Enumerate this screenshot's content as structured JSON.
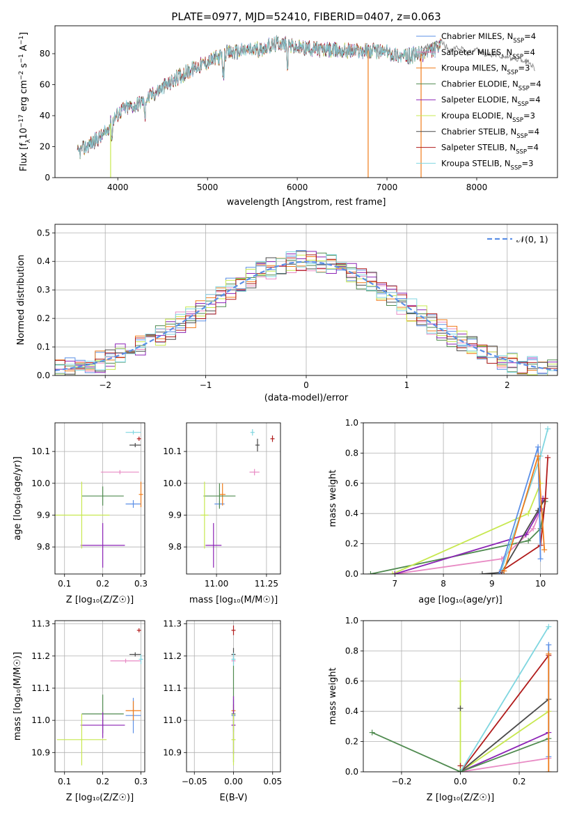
{
  "colors": {
    "chabrier_miles": "#5b8fe6",
    "salpeter_miles": "#e88ac4",
    "kroupa_miles": "#f07c1a",
    "chabrier_elodie": "#4f8a4f",
    "salpeter_elodie": "#8b22b5",
    "kroupa_elodie": "#c7e84f",
    "chabrier_stelib": "#4a4a4a",
    "salpeter_stelib": "#b01a1a",
    "kroupa_stelib": "#7fd6e0",
    "gauss": "#5b8fe6",
    "grid": "#b0b0b0"
  },
  "chart_data": [
    {
      "id": "spectrum",
      "type": "line",
      "title": "PLATE=0977, MJD=52410, FIBERID=0407, z=0.063",
      "xlabel": "wavelength [Angstrom, rest frame]",
      "ylabel_parts": [
        "Flux [f",
        "λ",
        "10",
        "−17",
        " erg cm",
        "−2",
        " s",
        "−1",
        " A",
        "−1",
        "]"
      ],
      "xlim": [
        3300,
        8900
      ],
      "ylim": [
        0,
        98
      ],
      "xticks": [
        4000,
        5000,
        6000,
        7000,
        8000
      ],
      "yticks": [
        0,
        20,
        40,
        60,
        80
      ],
      "grid": false,
      "legend_placement": "top-right",
      "legend": [
        {
          "base": "Chabrier MILES, N",
          "sub": "SSP",
          "n": "=4",
          "color_key": "chabrier_miles"
        },
        {
          "base": "Salpeter MILES, N",
          "sub": "SSP",
          "n": "=4",
          "color_key": "salpeter_miles"
        },
        {
          "base": "Kroupa MILES, N",
          "sub": "SSP",
          "n": "=3",
          "color_key": "kroupa_miles"
        },
        {
          "base": "Chabrier ELODIE, N",
          "sub": "SSP",
          "n": "=4",
          "color_key": "chabrier_elodie"
        },
        {
          "base": "Salpeter ELODIE, N",
          "sub": "SSP",
          "n": "=4",
          "color_key": "salpeter_elodie"
        },
        {
          "base": "Kroupa ELODIE, N",
          "sub": "SSP",
          "n": "=3",
          "color_key": "kroupa_elodie"
        },
        {
          "base": "Chabrier STELIB, N",
          "sub": "SSP",
          "n": "=4",
          "color_key": "chabrier_stelib"
        },
        {
          "base": "Salpeter STELIB, N",
          "sub": "SSP",
          "n": "=4",
          "color_key": "salpeter_stelib"
        },
        {
          "base": "Kroupa STELIB, N",
          "sub": "SSP",
          "n": "=3",
          "color_key": "kroupa_stelib"
        }
      ],
      "continuum": {
        "x": [
          3550,
          3700,
          3850,
          3950,
          4050,
          4200,
          4350,
          4500,
          4700,
          4900,
          5100,
          5200,
          5400,
          5600,
          5800,
          6000,
          6200,
          6400,
          6600,
          6800,
          7000,
          7200,
          7400,
          7600
        ],
        "y": [
          16,
          22,
          28,
          38,
          44,
          47,
          52,
          58,
          66,
          72,
          77,
          80,
          82,
          83,
          87,
          84,
          83,
          82,
          82,
          82,
          81,
          78,
          80,
          84
        ]
      },
      "data_extension": {
        "x": [
          7400,
          7500,
          7600,
          7700,
          7800,
          7900,
          8000,
          8100,
          8200,
          8300,
          8400,
          8500,
          8600,
          8650
        ],
        "y": [
          84,
          85,
          88,
          82,
          84,
          80,
          83,
          79,
          80,
          78,
          77,
          76,
          74,
          70
        ]
      },
      "dropouts": [
        {
          "x": 3920,
          "color_key": "kroupa_elodie"
        },
        {
          "x": 6790,
          "color_key": "kroupa_miles"
        },
        {
          "x": 7380,
          "color_key": "kroupa_miles"
        }
      ]
    },
    {
      "id": "residuals",
      "type": "line",
      "xlabel": "(data-model)/error",
      "ylabel": "Normed distribution",
      "xlim": [
        -2.5,
        2.5
      ],
      "ylim": [
        0,
        0.53
      ],
      "xticks": [
        -2,
        -1,
        0,
        1,
        2
      ],
      "yticks": [
        0.0,
        0.1,
        0.2,
        0.3,
        0.4,
        0.5
      ],
      "grid": true,
      "legend_placement": "top-right",
      "legend": [
        {
          "label": "𝒩(0, 1)",
          "color_key": "gauss",
          "style": "dashed"
        }
      ],
      "bin_width": 0.1,
      "gaussian": {
        "mu": 0,
        "sigma": 1
      },
      "series": [
        {
          "name": "Chabrier MILES",
          "color_key": "chabrier_miles",
          "values_seed": 1
        },
        {
          "name": "Salpeter MILES",
          "color_key": "salpeter_miles",
          "values_seed": 2
        },
        {
          "name": "Kroupa MILES",
          "color_key": "kroupa_miles",
          "values_seed": 3
        },
        {
          "name": "Chabrier ELODIE",
          "color_key": "chabrier_elodie",
          "values_seed": 4
        },
        {
          "name": "Salpeter ELODIE",
          "color_key": "salpeter_elodie",
          "values_seed": 5
        },
        {
          "name": "Kroupa ELODIE",
          "color_key": "kroupa_elodie",
          "values_seed": 6
        },
        {
          "name": "Chabrier STELIB",
          "color_key": "chabrier_stelib",
          "values_seed": 7
        },
        {
          "name": "Salpeter STELIB",
          "color_key": "salpeter_stelib",
          "values_seed": 8
        },
        {
          "name": "Kroupa STELIB",
          "color_key": "kroupa_stelib",
          "values_seed": 9
        }
      ]
    },
    {
      "id": "age_vs_z",
      "type": "scatter",
      "xlabel": "Z [log₁₀(Z/Z☉)]",
      "ylabel": "age  [log₁₀(age/yr)]",
      "xlim": [
        0.075,
        0.31
      ],
      "ylim": [
        9.715,
        10.19
      ],
      "xticks": [
        0.1,
        0.2,
        0.3
      ],
      "yticks": [
        9.8,
        9.9,
        10.0,
        10.1
      ],
      "grid": true,
      "points": [
        {
          "color_key": "chabrier_miles",
          "x": 0.28,
          "y": 9.935,
          "xerr": 0.02,
          "yerr": 0.012
        },
        {
          "color_key": "salpeter_miles",
          "x": 0.245,
          "y": 10.035,
          "xerr": 0.05,
          "yerr": 0.0
        },
        {
          "color_key": "kroupa_miles",
          "x": 0.3,
          "y": 9.965,
          "xerr": 0.0,
          "yerr": 0.04
        },
        {
          "color_key": "chabrier_elodie",
          "x": 0.2,
          "y": 9.96,
          "xerr": 0.055,
          "yerr": 0.03
        },
        {
          "color_key": "salpeter_elodie",
          "x": 0.2,
          "y": 9.805,
          "xerr": 0.058,
          "yerr": 0.07
        },
        {
          "color_key": "kroupa_elodie",
          "x": 0.145,
          "y": 9.9,
          "xerr": 0.073,
          "yerr": 0.105
        },
        {
          "color_key": "chabrier_stelib",
          "x": 0.285,
          "y": 10.12,
          "xerr": 0.015,
          "yerr": 0.0
        },
        {
          "color_key": "salpeter_stelib",
          "x": 0.295,
          "y": 10.14,
          "xerr": 0.005,
          "yerr": 0.0
        },
        {
          "color_key": "kroupa_stelib",
          "x": 0.28,
          "y": 10.16,
          "xerr": 0.02,
          "yerr": 0.0
        }
      ]
    },
    {
      "id": "age_vs_mass",
      "type": "scatter",
      "xlabel": "mass [log₁₀(M/M☉)]",
      "ylabel": "",
      "xlim": [
        10.85,
        11.32
      ],
      "ylim": [
        9.715,
        10.19
      ],
      "xticks": [
        11.0,
        11.25
      ],
      "yticks": [
        9.8,
        9.9,
        10.0,
        10.1
      ],
      "grid": true,
      "points": [
        {
          "color_key": "chabrier_miles",
          "x": 11.015,
          "y": 9.935,
          "xerr": 0.025,
          "yerr": 0.01
        },
        {
          "color_key": "salpeter_miles",
          "x": 11.19,
          "y": 10.035,
          "xerr": 0.025,
          "yerr": 0.01
        },
        {
          "color_key": "kroupa_miles",
          "x": 11.03,
          "y": 9.965,
          "xerr": 0.015,
          "yerr": 0.035
        },
        {
          "color_key": "chabrier_elodie",
          "x": 11.015,
          "y": 9.96,
          "xerr": 0.08,
          "yerr": 0.04
        },
        {
          "color_key": "salpeter_elodie",
          "x": 10.985,
          "y": 9.805,
          "xerr": 0.04,
          "yerr": 0.07
        },
        {
          "color_key": "kroupa_elodie",
          "x": 10.94,
          "y": 9.9,
          "xerr": 0.02,
          "yerr": 0.105
        },
        {
          "color_key": "chabrier_stelib",
          "x": 11.205,
          "y": 10.12,
          "xerr": 0.01,
          "yerr": 0.02
        },
        {
          "color_key": "salpeter_stelib",
          "x": 11.28,
          "y": 10.14,
          "xerr": 0.005,
          "yerr": 0.01
        },
        {
          "color_key": "kroupa_stelib",
          "x": 11.18,
          "y": 10.16,
          "xerr": 0.01,
          "yerr": 0.01
        }
      ]
    },
    {
      "id": "weight_vs_age",
      "type": "line",
      "xlabel": "age  [log₁₀(age/yr)]",
      "ylabel": "mass weight",
      "xlim": [
        6.35,
        10.35
      ],
      "ylim": [
        0,
        1.0
      ],
      "xticks": [
        7,
        8,
        9,
        10
      ],
      "yticks": [
        0.0,
        0.2,
        0.4,
        0.6,
        0.8,
        1.0
      ],
      "grid": true,
      "series": [
        {
          "color_key": "chabrier_elodie",
          "x": [
            6.5,
            9.75,
            10.0,
            10.1
          ],
          "y": [
            0.0,
            0.22,
            0.3,
            0.48
          ]
        },
        {
          "color_key": "salpeter_miles",
          "x": [
            7.0,
            9.2,
            9.85,
            10.0
          ],
          "y": [
            0.0,
            0.1,
            0.3,
            0.42
          ]
        },
        {
          "color_key": "kroupa_elodie",
          "x": [
            6.95,
            9.75,
            10.0
          ],
          "y": [
            0.0,
            0.4,
            0.6
          ]
        },
        {
          "color_key": "salpeter_elodie",
          "x": [
            7.0,
            9.7,
            10.0,
            10.05
          ],
          "y": [
            0.0,
            0.26,
            0.43,
            0.5
          ]
        },
        {
          "color_key": "chabrier_stelib",
          "x": [
            8.8,
            9.2,
            9.95,
            10.1
          ],
          "y": [
            0.0,
            0.01,
            0.42,
            0.5
          ]
        },
        {
          "color_key": "salpeter_stelib",
          "x": [
            9.2,
            10.0,
            10.1,
            10.15
          ],
          "y": [
            0.02,
            0.19,
            0.5,
            0.77
          ]
        },
        {
          "color_key": "kroupa_stelib",
          "x": [
            9.2,
            10.0,
            10.15
          ],
          "y": [
            0.03,
            0.78,
            0.96
          ]
        },
        {
          "color_key": "chabrier_miles",
          "x": [
            9.15,
            9.95,
            10.0
          ],
          "y": [
            0.0,
            0.84,
            0.1
          ]
        },
        {
          "color_key": "kroupa_miles",
          "x": [
            9.25,
            9.95,
            10.08
          ],
          "y": [
            0.02,
            0.78,
            0.16
          ]
        }
      ]
    },
    {
      "id": "mass_vs_z",
      "type": "scatter",
      "xlabel": "Z [log₁₀(Z/Z☉)]",
      "ylabel": "mass [log₁₀(M/M☉)]",
      "xlim": [
        0.075,
        0.31
      ],
      "ylim": [
        10.84,
        11.31
      ],
      "xticks": [
        0.1,
        0.2,
        0.3
      ],
      "yticks": [
        10.9,
        11.0,
        11.1,
        11.2,
        11.3
      ],
      "grid": true,
      "points": [
        {
          "color_key": "chabrier_miles",
          "x": 0.28,
          "y": 11.015,
          "xerr": 0.02,
          "yerr": 0.055
        },
        {
          "color_key": "salpeter_miles",
          "x": 0.26,
          "y": 11.185,
          "xerr": 0.04,
          "yerr": 0.0
        },
        {
          "color_key": "kroupa_miles",
          "x": 0.28,
          "y": 11.03,
          "xerr": 0.02,
          "yerr": 0.03
        },
        {
          "color_key": "chabrier_elodie",
          "x": 0.2,
          "y": 11.02,
          "xerr": 0.055,
          "yerr": 0.06
        },
        {
          "color_key": "salpeter_elodie",
          "x": 0.2,
          "y": 10.985,
          "xerr": 0.058,
          "yerr": 0.04
        },
        {
          "color_key": "kroupa_elodie",
          "x": 0.145,
          "y": 10.94,
          "xerr": 0.065,
          "yerr": 0.08
        },
        {
          "color_key": "chabrier_stelib",
          "x": 0.285,
          "y": 11.205,
          "xerr": 0.015,
          "yerr": 0.0
        },
        {
          "color_key": "salpeter_stelib",
          "x": 0.295,
          "y": 11.28,
          "xerr": 0.005,
          "yerr": 0.0
        },
        {
          "color_key": "kroupa_stelib",
          "x": 0.3,
          "y": 11.19,
          "xerr": 0.0,
          "yerr": 0.015
        }
      ]
    },
    {
      "id": "mass_vs_ebv",
      "type": "scatter",
      "xlabel": "E(B-V)",
      "ylabel": "",
      "xlim": [
        -0.06,
        0.06
      ],
      "ylim": [
        10.84,
        11.31
      ],
      "xticks": [
        -0.05,
        0.0,
        0.05
      ],
      "yticks": [
        10.9,
        11.0,
        11.1,
        11.2,
        11.3
      ],
      "grid": true,
      "points": [
        {
          "color_key": "chabrier_miles",
          "x": 0.0,
          "y": 11.015,
          "xerr": 0.0,
          "yerr": 0.05
        },
        {
          "color_key": "salpeter_miles",
          "x": 0.0,
          "y": 11.185,
          "xerr": 0.0,
          "yerr": 0.01
        },
        {
          "color_key": "kroupa_miles",
          "x": 0.0,
          "y": 11.03,
          "xerr": 0.0,
          "yerr": 0.02
        },
        {
          "color_key": "chabrier_elodie",
          "x": 0.0,
          "y": 11.02,
          "xerr": 0.0,
          "yerr": 0.15
        },
        {
          "color_key": "salpeter_elodie",
          "x": 0.0,
          "y": 10.985,
          "xerr": 0.0,
          "yerr": 0.09
        },
        {
          "color_key": "kroupa_elodie",
          "x": 0.0,
          "y": 10.94,
          "xerr": 0.0,
          "yerr": 0.08
        },
        {
          "color_key": "chabrier_stelib",
          "x": 0.0,
          "y": 11.205,
          "xerr": 0.0,
          "yerr": 0.02
        },
        {
          "color_key": "salpeter_stelib",
          "x": 0.0,
          "y": 11.28,
          "xerr": 0.0,
          "yerr": 0.015
        },
        {
          "color_key": "kroupa_stelib",
          "x": 0.0,
          "y": 11.19,
          "xerr": 0.0,
          "yerr": 0.02
        }
      ]
    },
    {
      "id": "weight_vs_z",
      "type": "line",
      "xlabel": "Z [log₁₀(Z/Z☉)]",
      "ylabel": "mass weight",
      "xlim": [
        -0.33,
        0.33
      ],
      "ylim": [
        0,
        1.0
      ],
      "xticks": [
        -0.2,
        0.0,
        0.2
      ],
      "yticks": [
        0.0,
        0.2,
        0.4,
        0.6,
        0.8,
        1.0
      ],
      "grid": true,
      "series": [
        {
          "color_key": "kroupa_elodie",
          "x": [
            0.0,
            0.0,
            0.3
          ],
          "y": [
            0.6,
            0.0,
            0.4
          ]
        },
        {
          "color_key": "salpeter_miles",
          "x": [
            0.0,
            0.3
          ],
          "y": [
            0.0,
            0.09
          ]
        },
        {
          "color_key": "salpeter_elodie",
          "x": [
            0.0,
            0.3
          ],
          "y": [
            0.0,
            0.26
          ]
        },
        {
          "color_key": "chabrier_stelib",
          "x": [
            0.0,
            0.3
          ],
          "y": [
            0.0,
            0.48
          ]
        },
        {
          "color_key": "salpeter_stelib",
          "x": [
            0.0,
            0.3
          ],
          "y": [
            0.0,
            0.77
          ]
        },
        {
          "color_key": "kroupa_stelib",
          "x": [
            0.0,
            0.3
          ],
          "y": [
            0.0,
            0.96
          ]
        },
        {
          "color_key": "chabrier_elodie",
          "x": [
            -0.3,
            0.0,
            0.3
          ],
          "y": [
            0.26,
            0.0,
            0.22
          ]
        },
        {
          "color_key": "chabrier_miles",
          "x": [
            0.3,
            0.3
          ],
          "y": [
            0.1,
            0.84
          ]
        },
        {
          "color_key": "kroupa_miles",
          "x": [
            0.3,
            0.3
          ],
          "y": [
            0.0,
            0.78
          ]
        }
      ],
      "markers": [
        {
          "color_key": "chabrier_stelib",
          "x": 0.0,
          "y": 0.42
        },
        {
          "color_key": "salpeter_stelib",
          "x": 0.0,
          "y": 0.04
        }
      ]
    }
  ]
}
